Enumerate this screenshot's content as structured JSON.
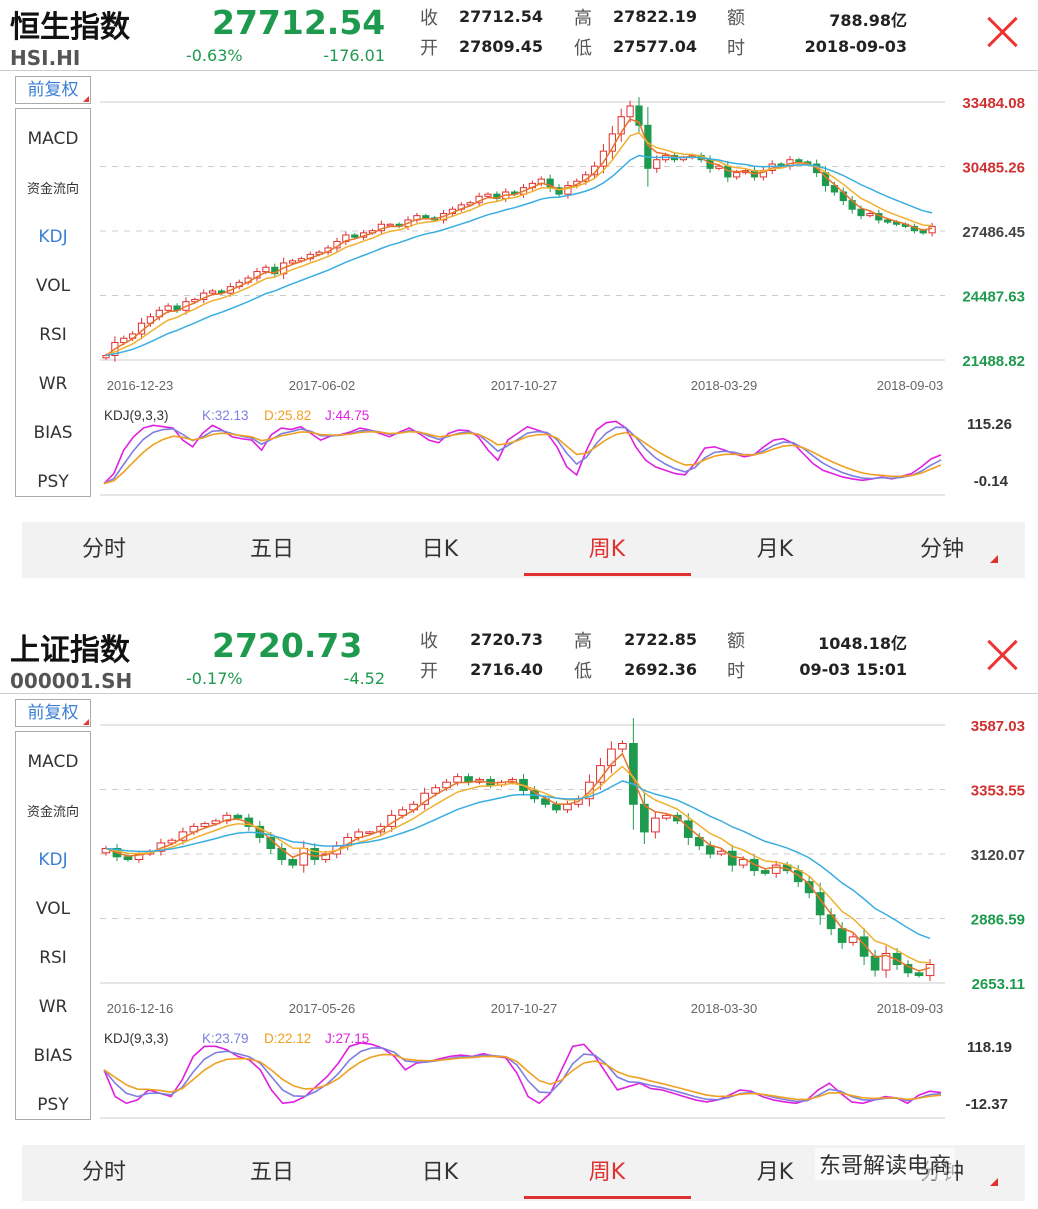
{
  "panels": [
    {
      "name": "恒生指数",
      "code": "HSI.HI",
      "price": "27712.54",
      "pct": "-0.63%",
      "change": "-176.01",
      "stats": {
        "close_label": "收",
        "close": "27712.54",
        "high_label": "高",
        "high": "27822.19",
        "amount_label": "额",
        "amount": "788.98亿",
        "open_label": "开",
        "open": "27809.45",
        "low_label": "低",
        "low": "27577.04",
        "time_label": "时",
        "time": "2018-09-03"
      },
      "adjust_button": "前复权",
      "indicators": [
        "MACD",
        "资金流向",
        "KDJ",
        "VOL",
        "RSI",
        "WR",
        "BIAS",
        "PSY"
      ],
      "active_indicator": "KDJ",
      "tabs": [
        "分时",
        "五日",
        "日K",
        "周K",
        "月K",
        "分钟"
      ],
      "active_tab": "周K",
      "chart_data": {
        "type": "candlestick",
        "y_labels": [
          "33484.08",
          "30485.26",
          "27486.45",
          "24487.63",
          "21488.82"
        ],
        "y_label_colors": [
          "#d03030",
          "#d03030",
          "#444444",
          "#1e9a4e",
          "#1e9a4e"
        ],
        "ylim": [
          21488.82,
          33484.08
        ],
        "x_labels": [
          "2016-12-23",
          "2017-06-02",
          "2017-10-27",
          "2018-03-29",
          "2018-09-03"
        ],
        "close_line": [
          21700,
          22300,
          22500,
          22700,
          23200,
          23500,
          23800,
          24000,
          23800,
          24200,
          24300,
          24600,
          24700,
          24600,
          24900,
          25100,
          25300,
          25600,
          25800,
          25500,
          26000,
          26100,
          26200,
          26400,
          26500,
          26700,
          27000,
          27300,
          27200,
          27400,
          27500,
          27800,
          27800,
          27700,
          28000,
          28200,
          28100,
          28000,
          28300,
          28500,
          28700,
          28800,
          29100,
          29200,
          29000,
          29300,
          29200,
          29500,
          29700,
          29900,
          29500,
          29200,
          29600,
          29800,
          30100,
          30500,
          31200,
          32000,
          32800,
          33300,
          32400,
          30400,
          30800,
          31000,
          30800,
          30900,
          31000,
          30800,
          30400,
          30500,
          30000,
          30200,
          30300,
          30000,
          30300,
          30600,
          30500,
          30800,
          30700,
          30600,
          30200,
          29600,
          29300,
          28900,
          28500,
          28200,
          28300,
          28000,
          27900,
          27800,
          27700,
          27500,
          27400,
          27700
        ]
      },
      "kdj": {
        "label": "KDJ(9,3,3)",
        "k_label": "K:32.13",
        "d_label": "D:25.82",
        "j_label": "J:44.75",
        "y_top": "115.26",
        "y_bottom": "-0.14",
        "k_color": "#7e7ee0",
        "d_color": "#f0a020",
        "j_color": "#e020e0",
        "j_values": [
          5,
          20,
          55,
          75,
          88,
          92,
          90,
          88,
          70,
          60,
          80,
          92,
          85,
          75,
          72,
          70,
          55,
          78,
          88,
          86,
          90,
          80,
          70,
          76,
          78,
          82,
          88,
          85,
          80,
          75,
          82,
          88,
          80,
          70,
          66,
          80,
          85,
          84,
          75,
          55,
          40,
          70,
          80,
          90,
          85,
          80,
          60,
          30,
          18,
          55,
          85,
          96,
          98,
          88,
          60,
          40,
          30,
          25,
          20,
          18,
          35,
          58,
          60,
          55,
          50,
          45,
          48,
          60,
          70,
          72,
          65,
          50,
          35,
          25,
          20,
          15,
          12,
          10,
          12,
          15,
          12,
          16,
          20,
          30,
          42,
          48
        ]
      }
    },
    {
      "name": "上证指数",
      "code": "000001.SH",
      "price": "2720.73",
      "pct": "-0.17%",
      "change": "-4.52",
      "stats": {
        "close_label": "收",
        "close": "2720.73",
        "high_label": "高",
        "high": "2722.85",
        "amount_label": "额",
        "amount": "1048.18亿",
        "open_label": "开",
        "open": "2716.40",
        "low_label": "低",
        "low": "2692.36",
        "time_label": "时",
        "time": "09-03 15:01"
      },
      "adjust_button": "前复权",
      "indicators": [
        "MACD",
        "资金流向",
        "KDJ",
        "VOL",
        "RSI",
        "WR",
        "BIAS",
        "PSY"
      ],
      "active_indicator": "KDJ",
      "tabs": [
        "分时",
        "五日",
        "日K",
        "周K",
        "月K",
        "分钟"
      ],
      "active_tab": "周K",
      "chart_data": {
        "type": "candlestick",
        "y_labels": [
          "3587.03",
          "3353.55",
          "3120.07",
          "2886.59",
          "2653.11"
        ],
        "y_label_colors": [
          "#d03030",
          "#d03030",
          "#444444",
          "#1e9a4e",
          "#1e9a4e"
        ],
        "ylim": [
          2653.11,
          3587.03
        ],
        "x_labels": [
          "2016-12-16",
          "2017-05-26",
          "2017-10-27",
          "2018-03-30",
          "2018-09-03"
        ],
        "close_line": [
          3140,
          3110,
          3100,
          3120,
          3130,
          3160,
          3170,
          3200,
          3220,
          3230,
          3240,
          3260,
          3250,
          3220,
          3180,
          3140,
          3100,
          3080,
          3140,
          3100,
          3120,
          3150,
          3180,
          3200,
          3200,
          3220,
          3260,
          3280,
          3300,
          3340,
          3360,
          3380,
          3400,
          3380,
          3390,
          3370,
          3380,
          3390,
          3350,
          3320,
          3300,
          3280,
          3300,
          3320,
          3380,
          3440,
          3500,
          3520,
          3300,
          3200,
          3250,
          3260,
          3240,
          3180,
          3150,
          3120,
          3130,
          3080,
          3100,
          3060,
          3050,
          3080,
          3060,
          3020,
          2980,
          2900,
          2850,
          2800,
          2820,
          2750,
          2700,
          2760,
          2720,
          2690,
          2680,
          2720
        ]
      },
      "kdj": {
        "label": "KDJ(9,3,3)",
        "k_label": "K:23.79",
        "d_label": "D:22.12",
        "j_label": "J:27.15",
        "y_top": "118.19",
        "y_bottom": "-12.37",
        "k_color": "#7e7ee0",
        "d_color": "#f0a020",
        "j_color": "#e020e0",
        "j_values": [
          60,
          20,
          10,
          15,
          30,
          25,
          20,
          45,
          80,
          95,
          95,
          90,
          80,
          75,
          60,
          30,
          10,
          12,
          20,
          35,
          50,
          70,
          95,
          100,
          98,
          92,
          80,
          60,
          70,
          72,
          76,
          80,
          82,
          80,
          84,
          80,
          78,
          55,
          20,
          10,
          25,
          60,
          95,
          98,
          80,
          55,
          30,
          35,
          40,
          32,
          30,
          25,
          20,
          15,
          12,
          15,
          22,
          30,
          28,
          20,
          15,
          12,
          10,
          15,
          30,
          40,
          25,
          12,
          10,
          15,
          20,
          18,
          10,
          22,
          28,
          26
        ]
      }
    }
  ],
  "watermark": "东哥解读电商"
}
